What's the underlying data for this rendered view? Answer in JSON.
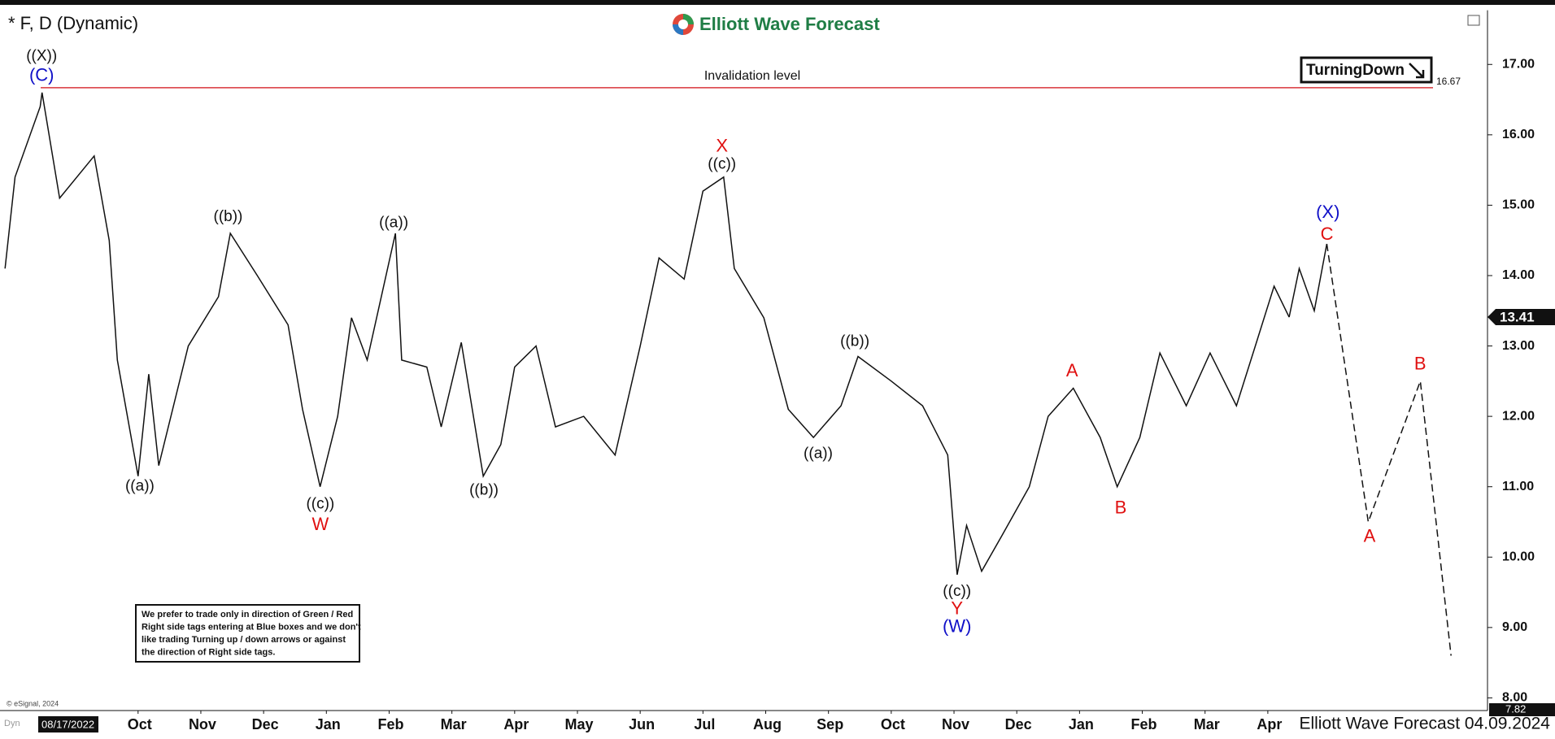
{
  "chart_data": {
    "type": "line",
    "title": "* F, D (Dynamic)",
    "brand": "Elliott Wave Forecast",
    "footer": "Elliott Wave Forecast 04.09.2024",
    "start_date": "08/17/2022",
    "copyright": "© eSignal, 2024",
    "mode_tag": "Dyn",
    "signal": "TurningDown",
    "xlim": [
      -1.2,
      22.5
    ],
    "xticks": [
      {
        "value": 1,
        "label": "Oct"
      },
      {
        "value": 2,
        "label": "Nov"
      },
      {
        "value": 3,
        "label": "Dec"
      },
      {
        "value": 4,
        "label": "Jan"
      },
      {
        "value": 5,
        "label": "Feb"
      },
      {
        "value": 6,
        "label": "Mar"
      },
      {
        "value": 7,
        "label": "Apr"
      },
      {
        "value": 8,
        "label": "May"
      },
      {
        "value": 9,
        "label": "Jun"
      },
      {
        "value": 10,
        "label": "Jul"
      },
      {
        "value": 11,
        "label": "Aug"
      },
      {
        "value": 12,
        "label": "Sep"
      },
      {
        "value": 13,
        "label": "Oct"
      },
      {
        "value": 14,
        "label": "Nov"
      },
      {
        "value": 15,
        "label": "Dec"
      },
      {
        "value": 16,
        "label": "Jan"
      },
      {
        "value": 17,
        "label": "Feb"
      },
      {
        "value": 18,
        "label": "Mar"
      },
      {
        "value": 19,
        "label": "Apr"
      }
    ],
    "ylim": [
      7.82,
      17.77
    ],
    "yticks": [
      {
        "value": 8,
        "label": "8.00"
      },
      {
        "value": 9,
        "label": "9.00"
      },
      {
        "value": 10,
        "label": "10.00"
      },
      {
        "value": 11,
        "label": "11.00"
      },
      {
        "value": 12,
        "label": "12.00"
      },
      {
        "value": 13,
        "label": "13.00"
      },
      {
        "value": 14,
        "label": "14.00"
      },
      {
        "value": 15,
        "label": "15.00"
      },
      {
        "value": 16,
        "label": "16.00"
      },
      {
        "value": 17,
        "label": "17.00"
      }
    ],
    "last_price": 13.41,
    "invalidation": {
      "label": "Invalidation level",
      "value": 16.67,
      "color": "#d9343a"
    },
    "series": [
      {
        "color": "#111111",
        "dashed": false,
        "x": [
          -1.12,
          -0.96,
          -0.56,
          -0.53,
          -0.25,
          0.3,
          0.54,
          0.67,
          1.0,
          1.17,
          1.33,
          1.8,
          2.28,
          2.47,
          2.9,
          3.39,
          3.62,
          3.9,
          4.18,
          4.4,
          4.65,
          5.1,
          5.2,
          5.6,
          5.83,
          6.15,
          6.5,
          6.78,
          7.0,
          7.34,
          7.65,
          8.1,
          8.6,
          9.0,
          9.3,
          9.7,
          10.0,
          10.33,
          10.5,
          10.97,
          11.36,
          11.76,
          12.2,
          12.47,
          13.0,
          13.5,
          13.9,
          14.05,
          14.2,
          14.44,
          14.76,
          15.2,
          15.5,
          15.9,
          16.33,
          16.6,
          16.96,
          17.28,
          17.7,
          18.08,
          18.5,
          18.8,
          19.1,
          19.34
        ],
        "values": [
          14.1,
          15.4,
          16.4,
          16.6,
          15.1,
          15.7,
          14.5,
          12.8,
          11.15,
          12.6,
          11.3,
          13.0,
          13.7,
          14.6,
          14.0,
          13.3,
          12.1,
          11.0,
          12.0,
          13.4,
          12.8,
          14.6,
          12.8,
          12.7,
          11.85,
          13.05,
          11.15,
          11.6,
          12.7,
          13.0,
          11.85,
          12.0,
          11.45,
          13.0,
          14.25,
          13.95,
          15.2,
          15.4,
          14.1,
          13.4,
          12.1,
          11.7,
          12.15,
          12.85,
          12.5,
          12.15,
          11.45,
          9.75,
          10.45,
          9.8,
          10.3,
          11.0,
          12.0,
          12.4,
          11.7,
          11.0,
          11.7,
          12.9,
          12.15,
          12.9,
          12.15,
          13.0,
          13.85,
          13.41
        ]
      },
      {
        "color": "#111111",
        "dashed": false,
        "x": [
          19.34,
          19.5,
          19.74,
          19.94
        ],
        "values": [
          13.41,
          14.1,
          13.5,
          14.45
        ]
      },
      {
        "color": "#111111",
        "dashed": true,
        "x": [
          19.94,
          20.6,
          21.43,
          21.92
        ],
        "values": [
          14.45,
          10.5,
          12.5,
          8.6
        ]
      }
    ],
    "annotations": [
      {
        "text": "((X))",
        "color": "#111111"
      },
      {
        "text": "(C)",
        "color": "#1010c8"
      },
      {
        "text": "((a))",
        "color": "#111111"
      },
      {
        "text": "((b))",
        "color": "#111111"
      },
      {
        "text": "((c))",
        "color": "#111111"
      },
      {
        "text": "W",
        "color": "#e01010"
      },
      {
        "text": "((a))",
        "color": "#111111"
      },
      {
        "text": "((b))",
        "color": "#111111"
      },
      {
        "text": "X",
        "color": "#e01010"
      },
      {
        "text": "((c))",
        "color": "#111111"
      },
      {
        "text": "((a))",
        "color": "#111111"
      },
      {
        "text": "((b))",
        "color": "#111111"
      },
      {
        "text": "((c))",
        "color": "#111111"
      },
      {
        "text": "Y",
        "color": "#e01010"
      },
      {
        "text": "(W)",
        "color": "#1010c8"
      },
      {
        "text": "A",
        "color": "#e01010"
      },
      {
        "text": "B",
        "color": "#e01010"
      },
      {
        "text": "(X)",
        "color": "#1010c8"
      },
      {
        "text": "C",
        "color": "#e01010"
      },
      {
        "text": "A",
        "color": "#e01010"
      },
      {
        "text": "B",
        "color": "#e01010"
      }
    ],
    "note": [
      "We prefer to trade only in direction of Green / Red",
      "Right side tags entering at Blue boxes and we don't",
      "like trading Turning up / down arrows or against",
      "the direction of Right side tags."
    ]
  }
}
